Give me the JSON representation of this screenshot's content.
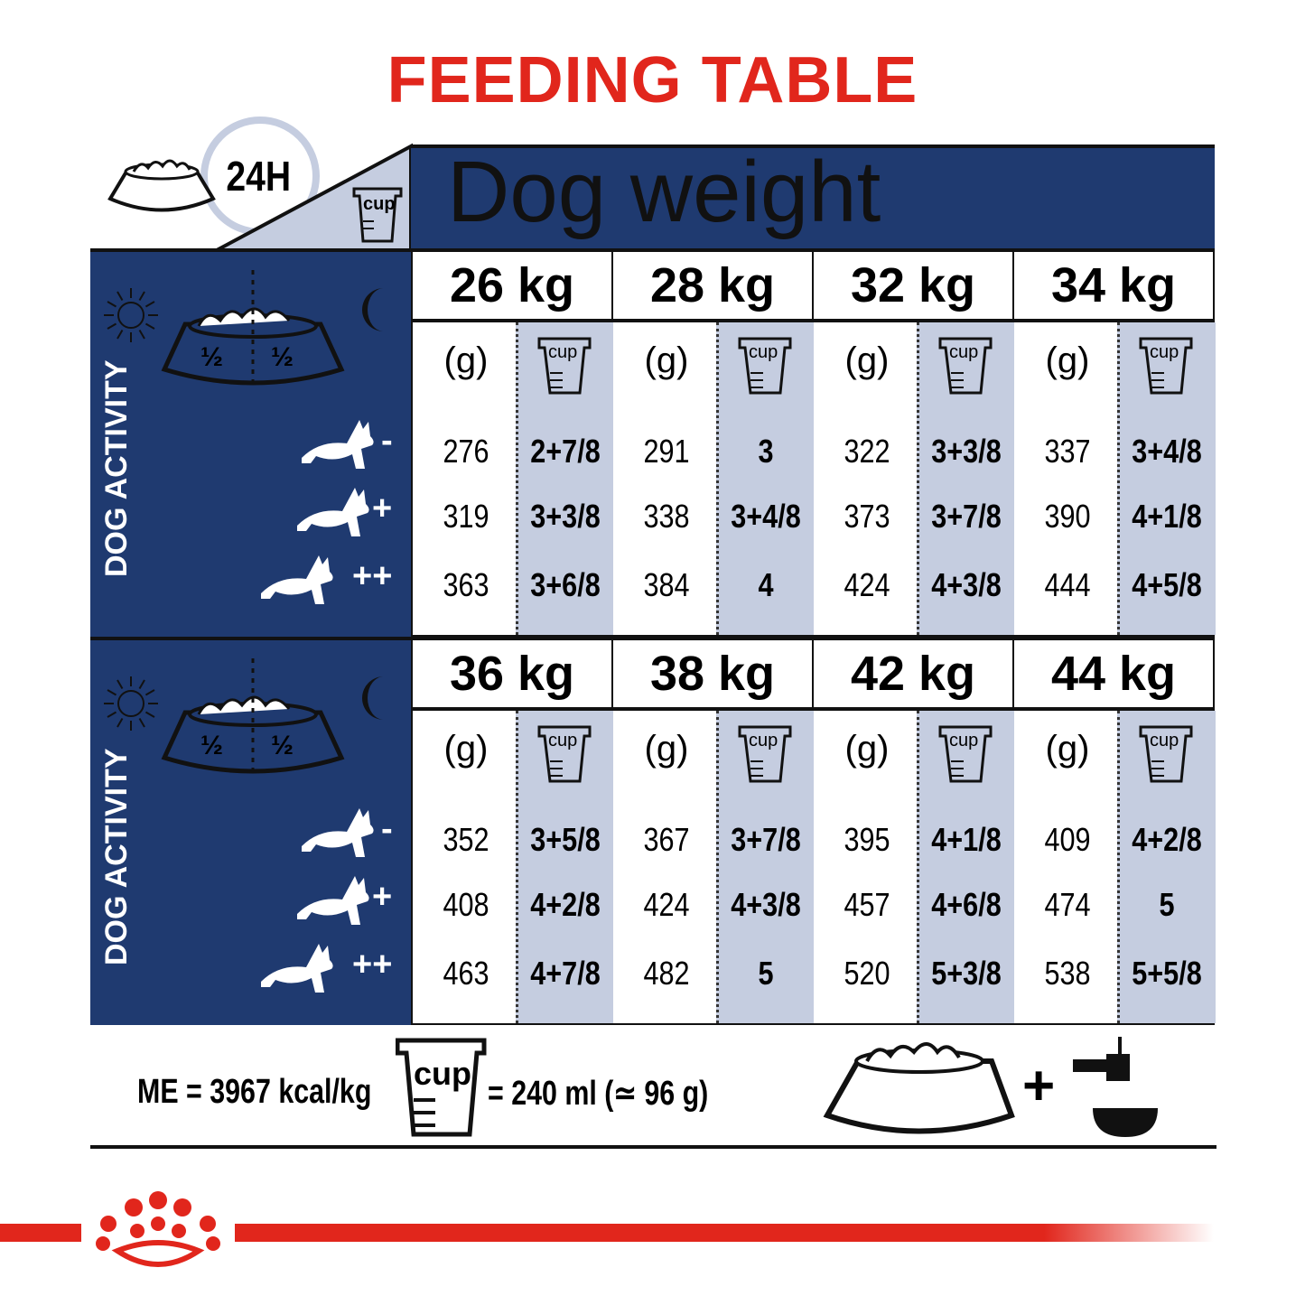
{
  "title": "FEEDING TABLE",
  "header": {
    "daily_label": "24H",
    "cup_label": "cup",
    "dog_weight": "Dog weight"
  },
  "activity_label": "DOG ACTIVITY",
  "half": "½",
  "activity_levels": [
    "-",
    "+",
    "++"
  ],
  "col_headers": {
    "grams": "(g)",
    "cup": "cup"
  },
  "blocks": [
    {
      "weights": [
        {
          "label": "26 kg",
          "grams": [
            "276",
            "319",
            "363"
          ],
          "cups": [
            "2+7/8",
            "3+3/8",
            "3+6/8"
          ]
        },
        {
          "label": "28 kg",
          "grams": [
            "291",
            "338",
            "384"
          ],
          "cups": [
            "3",
            "3+4/8",
            "4"
          ]
        },
        {
          "label": "32 kg",
          "grams": [
            "322",
            "373",
            "424"
          ],
          "cups": [
            "3+3/8",
            "3+7/8",
            "4+3/8"
          ]
        },
        {
          "label": "34 kg",
          "grams": [
            "337",
            "390",
            "444"
          ],
          "cups": [
            "3+4/8",
            "4+1/8",
            "4+5/8"
          ]
        }
      ]
    },
    {
      "weights": [
        {
          "label": "36 kg",
          "grams": [
            "352",
            "408",
            "463"
          ],
          "cups": [
            "3+5/8",
            "4+2/8",
            "4+7/8"
          ]
        },
        {
          "label": "38 kg",
          "grams": [
            "367",
            "424",
            "482"
          ],
          "cups": [
            "3+7/8",
            "4+3/8",
            "5"
          ]
        },
        {
          "label": "42 kg",
          "grams": [
            "395",
            "457",
            "520"
          ],
          "cups": [
            "4+1/8",
            "4+6/8",
            "5+3/8"
          ]
        },
        {
          "label": "44 kg",
          "grams": [
            "409",
            "474",
            "538"
          ],
          "cups": [
            "4+2/8",
            "5",
            "5+5/8"
          ]
        }
      ]
    }
  ],
  "footer": {
    "me": "ME = 3967 kcal/kg",
    "cup_label": "cup",
    "cup_equiv": "= 240 ml (≃ 96 g)",
    "plus": "+"
  },
  "colors": {
    "navy": "#1f3a70",
    "light_blue": "#c5cde0",
    "red": "#e1261c"
  }
}
